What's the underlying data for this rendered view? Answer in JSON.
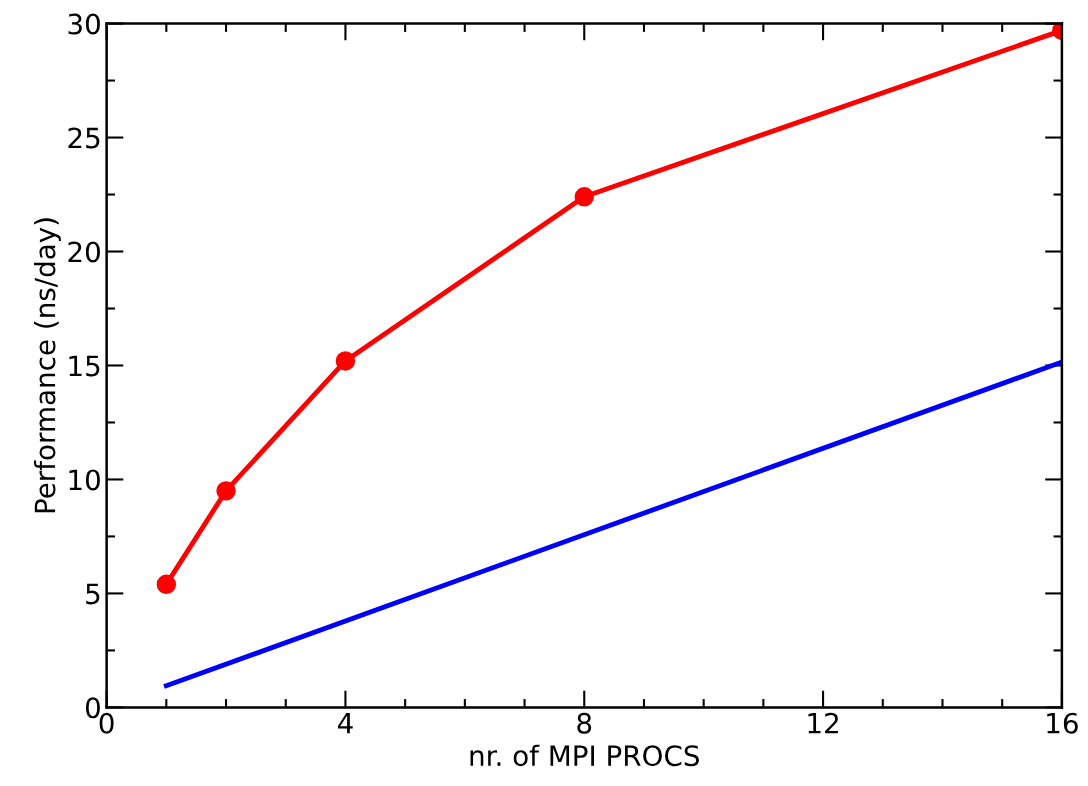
{
  "chart_data": {
    "type": "line",
    "xlabel": "nr. of MPI PROCS",
    "ylabel": "Performance (ns/day)",
    "xlim": [
      0,
      16
    ],
    "xticks": [
      0,
      4,
      8,
      12,
      16
    ],
    "ylim": [
      0,
      30
    ],
    "yticks": [
      0,
      5,
      10,
      15,
      20,
      25,
      30
    ],
    "grid": false,
    "series": [
      {
        "color": "#ff0000",
        "x": [
          1,
          2,
          4,
          8,
          16
        ],
        "values": [
          5.4,
          9.5,
          15.2,
          22.4,
          29.7
        ],
        "marker": "circle"
      },
      {
        "color": "#0000ff",
        "x": [
          1,
          16
        ],
        "values": [
          0.95,
          15.15
        ],
        "marker": "none"
      }
    ]
  }
}
